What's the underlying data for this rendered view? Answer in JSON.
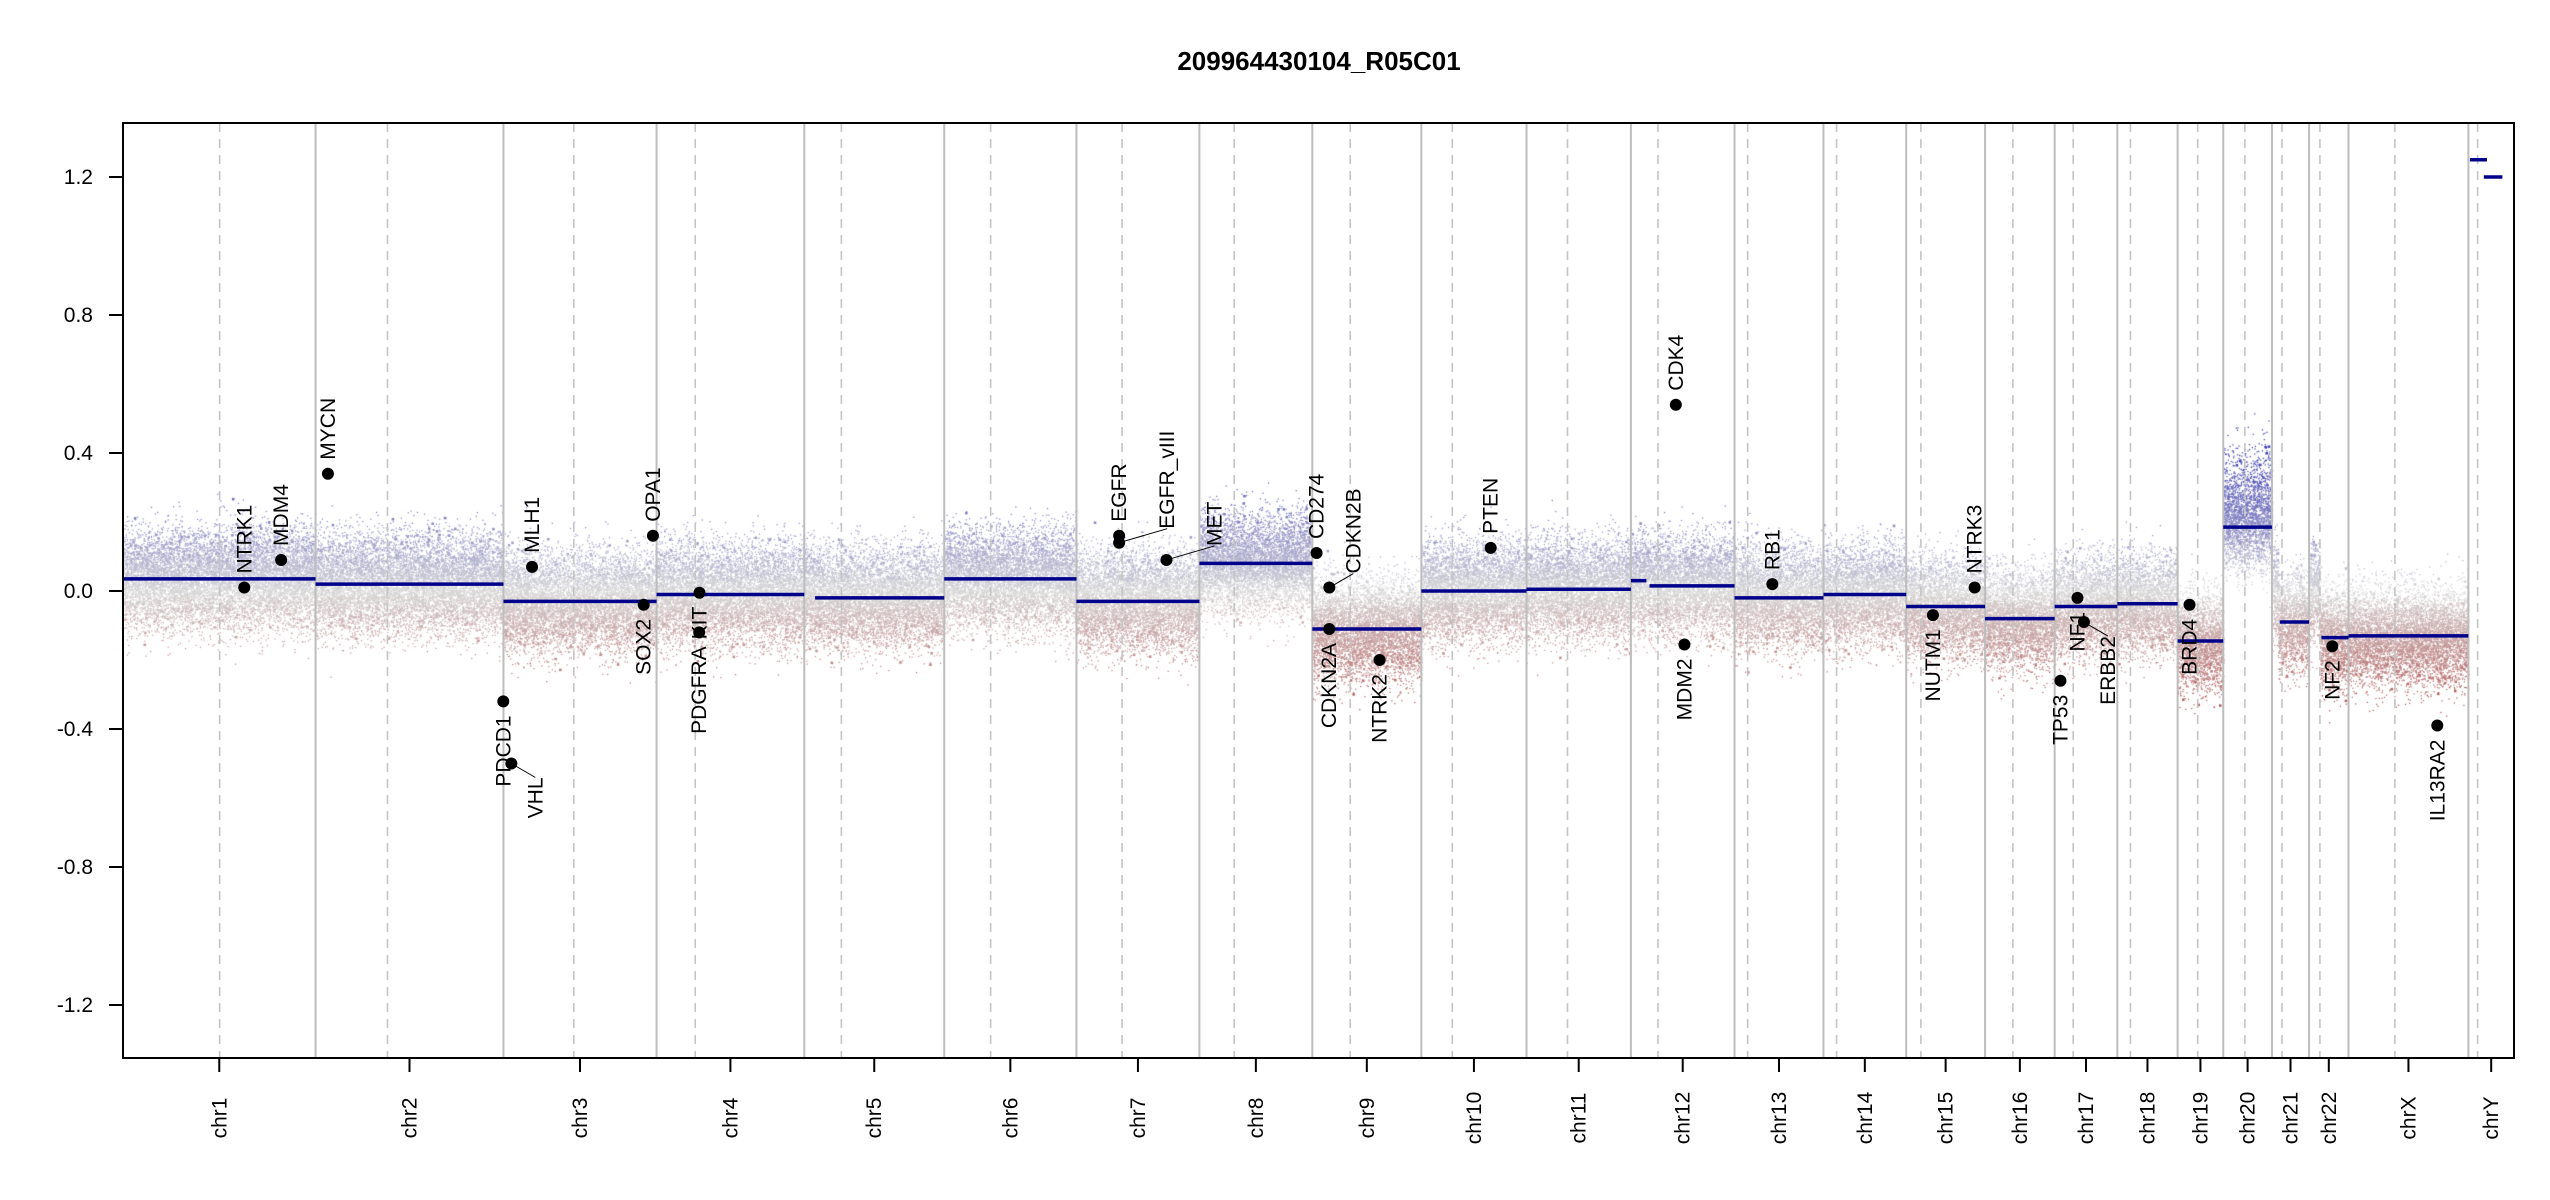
{
  "chart_data": {
    "type": "scatter",
    "title": "209964430104_R05C01",
    "xlabel": "",
    "ylabel": "",
    "ylim": [
      -1.35,
      1.35
    ],
    "yticks": [
      "1.2",
      "0.8",
      "0.4",
      "0.0",
      "-0.4",
      "-0.8",
      "-1.2"
    ],
    "ytick_values": [
      1.2,
      0.8,
      0.4,
      0.0,
      -0.4,
      -0.8,
      -1.2
    ],
    "colors": {
      "gain": "#3a3aa8",
      "neutral": "#d0d0d0",
      "loss": "#a82a2a",
      "segment": "#00008b",
      "gene": "#000000"
    },
    "chromosomes": [
      {
        "name": "chr1",
        "length_mb": 249,
        "centromere_mb": 125
      },
      {
        "name": "chr2",
        "length_mb": 243,
        "centromere_mb": 93
      },
      {
        "name": "chr3",
        "length_mb": 198,
        "centromere_mb": 91
      },
      {
        "name": "chr4",
        "length_mb": 191,
        "centromere_mb": 50
      },
      {
        "name": "chr5",
        "length_mb": 181,
        "centromere_mb": 48
      },
      {
        "name": "chr6",
        "length_mb": 171,
        "centromere_mb": 60
      },
      {
        "name": "chr7",
        "length_mb": 159,
        "centromere_mb": 59
      },
      {
        "name": "chr8",
        "length_mb": 146,
        "centromere_mb": 45
      },
      {
        "name": "chr9",
        "length_mb": 141,
        "centromere_mb": 49
      },
      {
        "name": "chr10",
        "length_mb": 136,
        "centromere_mb": 40
      },
      {
        "name": "chr11",
        "length_mb": 135,
        "centromere_mb": 53
      },
      {
        "name": "chr12",
        "length_mb": 134,
        "centromere_mb": 35
      },
      {
        "name": "chr13",
        "length_mb": 115,
        "centromere_mb": 17
      },
      {
        "name": "chr14",
        "length_mb": 107,
        "centromere_mb": 17
      },
      {
        "name": "chr15",
        "length_mb": 102,
        "centromere_mb": 19
      },
      {
        "name": "chr16",
        "length_mb": 90,
        "centromere_mb": 36
      },
      {
        "name": "chr17",
        "length_mb": 81,
        "centromere_mb": 24
      },
      {
        "name": "chr18",
        "length_mb": 78,
        "centromere_mb": 17
      },
      {
        "name": "chr19",
        "length_mb": 59,
        "centromere_mb": 26
      },
      {
        "name": "chr20",
        "length_mb": 63,
        "centromere_mb": 28
      },
      {
        "name": "chr21",
        "length_mb": 48,
        "centromere_mb": 13
      },
      {
        "name": "chr22",
        "length_mb": 51,
        "centromere_mb": 14
      },
      {
        "name": "chrX",
        "length_mb": 155,
        "centromere_mb": 60
      },
      {
        "name": "chrY",
        "length_mb": 59,
        "centromere_mb": 12
      }
    ],
    "segments": [
      {
        "chr": "chr1",
        "start_mb": 0,
        "end_mb": 249,
        "value": 0.035
      },
      {
        "chr": "chr2",
        "start_mb": 0,
        "end_mb": 243,
        "value": 0.02
      },
      {
        "chr": "chr3",
        "start_mb": 0,
        "end_mb": 198,
        "value": -0.03
      },
      {
        "chr": "chr4",
        "start_mb": 0,
        "end_mb": 191,
        "value": -0.01
      },
      {
        "chr": "chr5",
        "start_mb": 14,
        "end_mb": 181,
        "value": -0.02
      },
      {
        "chr": "chr6",
        "start_mb": 0,
        "end_mb": 171,
        "value": 0.035
      },
      {
        "chr": "chr7",
        "start_mb": 0,
        "end_mb": 159,
        "value": -0.03
      },
      {
        "chr": "chr8",
        "start_mb": 0,
        "end_mb": 146,
        "value": 0.08
      },
      {
        "chr": "chr9",
        "start_mb": 0,
        "end_mb": 141,
        "value": -0.11
      },
      {
        "chr": "chr10",
        "start_mb": 0,
        "end_mb": 136,
        "value": 0.0
      },
      {
        "chr": "chr11",
        "start_mb": 0,
        "end_mb": 135,
        "value": 0.005
      },
      {
        "chr": "chr12",
        "start_mb": 0,
        "end_mb": 20,
        "value": 0.03
      },
      {
        "chr": "chr12",
        "start_mb": 24,
        "end_mb": 134,
        "value": 0.015
      },
      {
        "chr": "chr13",
        "start_mb": 0,
        "end_mb": 115,
        "value": -0.02
      },
      {
        "chr": "chr14",
        "start_mb": 0,
        "end_mb": 107,
        "value": -0.01
      },
      {
        "chr": "chr15",
        "start_mb": 0,
        "end_mb": 102,
        "value": -0.045
      },
      {
        "chr": "chr16",
        "start_mb": 0,
        "end_mb": 90,
        "value": -0.08
      },
      {
        "chr": "chr17",
        "start_mb": 0,
        "end_mb": 81,
        "value": -0.045
      },
      {
        "chr": "chr18",
        "start_mb": 0,
        "end_mb": 78,
        "value": -0.037
      },
      {
        "chr": "chr19",
        "start_mb": 0,
        "end_mb": 59,
        "value": -0.145
      },
      {
        "chr": "chr20",
        "start_mb": 0,
        "end_mb": 63,
        "value": 0.185
      },
      {
        "chr": "chr21",
        "start_mb": 10,
        "end_mb": 48,
        "value": -0.09
      },
      {
        "chr": "chr22",
        "start_mb": 16,
        "end_mb": 51,
        "value": -0.135
      },
      {
        "chr": "chrX",
        "start_mb": 0,
        "end_mb": 155,
        "value": -0.13
      },
      {
        "chr": "chrY",
        "start_mb": 2,
        "end_mb": 24,
        "value": 1.25
      },
      {
        "chr": "chrY",
        "start_mb": 20,
        "end_mb": 44,
        "value": 1.2
      }
    ],
    "genes": [
      {
        "label": "NTRK1",
        "chr": "chr1",
        "pos_mb": 156.8,
        "value": 0.01
      },
      {
        "label": "MDM4",
        "chr": "chr1",
        "pos_mb": 204.5,
        "value": 0.09
      },
      {
        "label": "MYCN",
        "chr": "chr2",
        "pos_mb": 16,
        "value": 0.34
      },
      {
        "label": "PDCD1",
        "chr": "chr2",
        "pos_mb": 242.8,
        "value": -0.32
      },
      {
        "label": "VHL",
        "chr": "chr3",
        "pos_mb": 10.2,
        "value": -0.5
      },
      {
        "label": "MLH1",
        "chr": "chr3",
        "pos_mb": 37,
        "value": 0.07
      },
      {
        "label": "SOX2",
        "chr": "chr3",
        "pos_mb": 181.4,
        "value": -0.04
      },
      {
        "label": "OPA1",
        "chr": "chr3",
        "pos_mb": 193.3,
        "value": 0.16
      },
      {
        "label": "PDGFRA",
        "chr": "chr4",
        "pos_mb": 55.1,
        "value": -0.12
      },
      {
        "label": "KIT",
        "chr": "chr4",
        "pos_mb": 55.5,
        "value": -0.005
      },
      {
        "label": "EGFR",
        "chr": "chr7",
        "pos_mb": 55.2,
        "value": 0.16
      },
      {
        "label": "EGFR_vIII",
        "chr": "chr7",
        "pos_mb": 55.2,
        "value": 0.14
      },
      {
        "label": "MET",
        "chr": "chr7",
        "pos_mb": 116.4,
        "value": 0.09
      },
      {
        "label": "CD274",
        "chr": "chr9",
        "pos_mb": 5.5,
        "value": 0.11
      },
      {
        "label": "CDKN2A",
        "chr": "chr9",
        "pos_mb": 21.9,
        "value": -0.11
      },
      {
        "label": "CDKN2B",
        "chr": "chr9",
        "pos_mb": 22.0,
        "value": 0.01
      },
      {
        "label": "NTRK2",
        "chr": "chr9",
        "pos_mb": 87,
        "value": -0.2
      },
      {
        "label": "PTEN",
        "chr": "chr10",
        "pos_mb": 89.7,
        "value": 0.125
      },
      {
        "label": "CDK4",
        "chr": "chr12",
        "pos_mb": 58.1,
        "value": 0.54
      },
      {
        "label": "MDM2",
        "chr": "chr12",
        "pos_mb": 69.2,
        "value": -0.155
      },
      {
        "label": "RB1",
        "chr": "chr13",
        "pos_mb": 48.9,
        "value": 0.02
      },
      {
        "label": "NUTM1",
        "chr": "chr15",
        "pos_mb": 34.6,
        "value": -0.07
      },
      {
        "label": "NTRK3",
        "chr": "chr15",
        "pos_mb": 88.5,
        "value": 0.01
      },
      {
        "label": "TP53",
        "chr": "chr17",
        "pos_mb": 7.5,
        "value": -0.26
      },
      {
        "label": "NF1",
        "chr": "chr17",
        "pos_mb": 29.5,
        "value": -0.02
      },
      {
        "label": "ERBB2",
        "chr": "chr17",
        "pos_mb": 37.8,
        "value": -0.09
      },
      {
        "label": "BRD4",
        "chr": "chr19",
        "pos_mb": 15.4,
        "value": -0.04
      },
      {
        "label": "NF2",
        "chr": "chr22",
        "pos_mb": 30,
        "value": -0.16
      },
      {
        "label": "IL13RA2",
        "chr": "chrX",
        "pos_mb": 114.8,
        "value": -0.39
      }
    ]
  }
}
